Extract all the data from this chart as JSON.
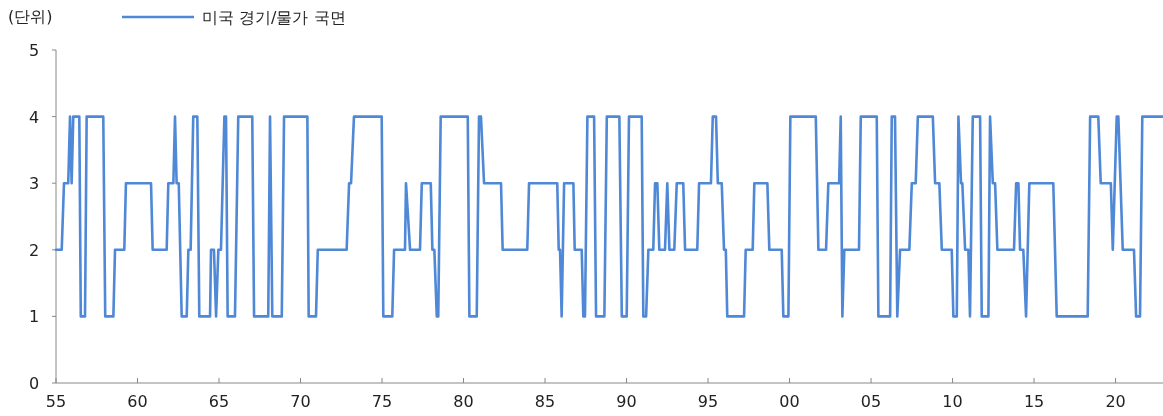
{
  "chart_data": {
    "type": "line",
    "ylabel": "(단위)",
    "legend": "top",
    "x": [
      1955.0,
      1955.35,
      1955.49,
      1955.75,
      1955.86,
      1955.96,
      1956.06,
      1956.43,
      1956.52,
      1956.78,
      1956.88,
      1957.9,
      1958.02,
      1958.52,
      1958.62,
      1959.19,
      1959.29,
      1960.83,
      1960.93,
      1961.79,
      1961.89,
      1962.2,
      1962.3,
      1962.4,
      1962.53,
      1962.71,
      1963.02,
      1963.12,
      1963.26,
      1963.42,
      1963.67,
      1963.79,
      1964.45,
      1964.51,
      1964.69,
      1964.82,
      1964.96,
      1965.12,
      1965.33,
      1965.43,
      1965.53,
      1965.98,
      1966.18,
      1967.04,
      1967.15,
      1968.02,
      1968.13,
      1968.27,
      1968.85,
      1968.99,
      1970.42,
      1970.5,
      1970.95,
      1971.06,
      1972.83,
      1972.98,
      1973.1,
      1973.28,
      1974.98,
      1975.08,
      1975.63,
      1975.74,
      1976.41,
      1976.47,
      1976.72,
      1977.33,
      1977.44,
      1977.99,
      1978.09,
      1978.21,
      1978.36,
      1978.45,
      1978.6,
      1980.26,
      1980.36,
      1980.81,
      1980.95,
      1981.07,
      1981.26,
      1982.3,
      1982.4,
      1983.91,
      1984.02,
      1985.75,
      1985.84,
      1985.92,
      1986.02,
      1986.17,
      1986.74,
      1986.82,
      1987.25,
      1987.35,
      1987.45,
      1987.6,
      1988.01,
      1988.13,
      1988.64,
      1988.79,
      1989.56,
      1989.71,
      1990.01,
      1990.15,
      1990.93,
      1991.03,
      1991.2,
      1991.34,
      1991.64,
      1991.75,
      1991.89,
      1992.01,
      1992.36,
      1992.5,
      1992.63,
      1992.93,
      1993.08,
      1993.48,
      1993.59,
      1994.34,
      1994.45,
      1995.18,
      1995.29,
      1995.49,
      1995.6,
      1995.84,
      1995.98,
      1996.09,
      1996.18,
      1997.21,
      1997.31,
      1997.74,
      1997.84,
      1998.64,
      1998.76,
      1999.52,
      1999.62,
      1999.93,
      2000.05,
      2001.61,
      2001.77,
      2002.24,
      2002.38,
      2003.04,
      2003.14,
      2003.24,
      2003.36,
      2004.26,
      2004.37,
      2005.35,
      2005.45,
      2006.17,
      2006.27,
      2006.47,
      2006.61,
      2006.78,
      2007.35,
      2007.5,
      2007.74,
      2007.87,
      2008.79,
      2008.93,
      2009.19,
      2009.34,
      2009.95,
      2010.05,
      2010.26,
      2010.36,
      2010.52,
      2010.6,
      2010.77,
      2010.97,
      2011.07,
      2011.24,
      2011.69,
      2011.79,
      2012.2,
      2012.3,
      2012.47,
      2012.61,
      2012.75,
      2013.77,
      2013.9,
      2014.04,
      2014.14,
      2014.34,
      2014.51,
      2014.71,
      2016.18,
      2016.39,
      2018.29,
      2018.44,
      2018.94,
      2019.09,
      2019.71,
      2019.83,
      2020.07,
      2020.17,
      2020.44,
      2021.13,
      2021.26,
      2021.5,
      2021.64,
      2022.91
    ],
    "series": [
      {
        "name": "미국 경기/물가 국면",
        "color": "#4f88d6",
        "values": [
          2,
          2,
          3,
          3,
          4,
          3,
          4,
          4,
          1,
          1,
          4,
          4,
          1,
          1,
          2,
          2,
          3,
          3,
          2,
          2,
          3,
          3,
          4,
          3,
          3,
          1,
          1,
          2,
          2,
          4,
          4,
          1,
          1,
          2,
          2,
          1,
          2,
          2,
          4,
          4,
          1,
          1,
          4,
          4,
          1,
          1,
          4,
          1,
          1,
          4,
          4,
          1,
          1,
          2,
          2,
          3,
          3,
          4,
          4,
          1,
          1,
          2,
          2,
          3,
          2,
          2,
          3,
          3,
          2,
          2,
          1,
          1,
          4,
          4,
          1,
          1,
          4,
          4,
          3,
          3,
          2,
          2,
          3,
          3,
          2,
          2,
          1,
          3,
          3,
          2,
          2,
          1,
          1,
          4,
          4,
          1,
          1,
          4,
          4,
          1,
          1,
          4,
          4,
          1,
          1,
          2,
          2,
          3,
          3,
          2,
          2,
          3,
          2,
          2,
          3,
          3,
          2,
          2,
          3,
          3,
          4,
          4,
          3,
          3,
          2,
          2,
          1,
          1,
          2,
          2,
          3,
          3,
          2,
          2,
          1,
          1,
          4,
          4,
          2,
          2,
          3,
          3,
          4,
          1,
          2,
          2,
          4,
          4,
          1,
          1,
          4,
          4,
          1,
          2,
          2,
          3,
          3,
          4,
          4,
          3,
          3,
          2,
          2,
          1,
          1,
          4,
          3,
          3,
          2,
          2,
          1,
          4,
          4,
          1,
          1,
          4,
          3,
          3,
          2,
          2,
          3,
          3,
          2,
          2,
          1,
          3,
          3,
          1,
          1,
          4,
          4,
          3,
          3,
          2,
          4,
          4,
          2,
          2,
          1,
          1,
          4,
          4
        ]
      }
    ],
    "xlim": [
      1955,
      2022.91
    ],
    "ylim": [
      0,
      5
    ],
    "yticks": [
      0,
      1,
      2,
      3,
      4,
      5
    ],
    "xticks": [
      {
        "value": 1955,
        "label": "55"
      },
      {
        "value": 1960,
        "label": "60"
      },
      {
        "value": 1965,
        "label": "65"
      },
      {
        "value": 1970,
        "label": "70"
      },
      {
        "value": 1975,
        "label": "75"
      },
      {
        "value": 1980,
        "label": "80"
      },
      {
        "value": 1985,
        "label": "85"
      },
      {
        "value": 1990,
        "label": "90"
      },
      {
        "value": 1995,
        "label": "95"
      },
      {
        "value": 2000,
        "label": "00"
      },
      {
        "value": 2005,
        "label": "05"
      },
      {
        "value": 2010,
        "label": "10"
      },
      {
        "value": 2015,
        "label": "15"
      },
      {
        "value": 2020,
        "label": "20"
      }
    ]
  }
}
